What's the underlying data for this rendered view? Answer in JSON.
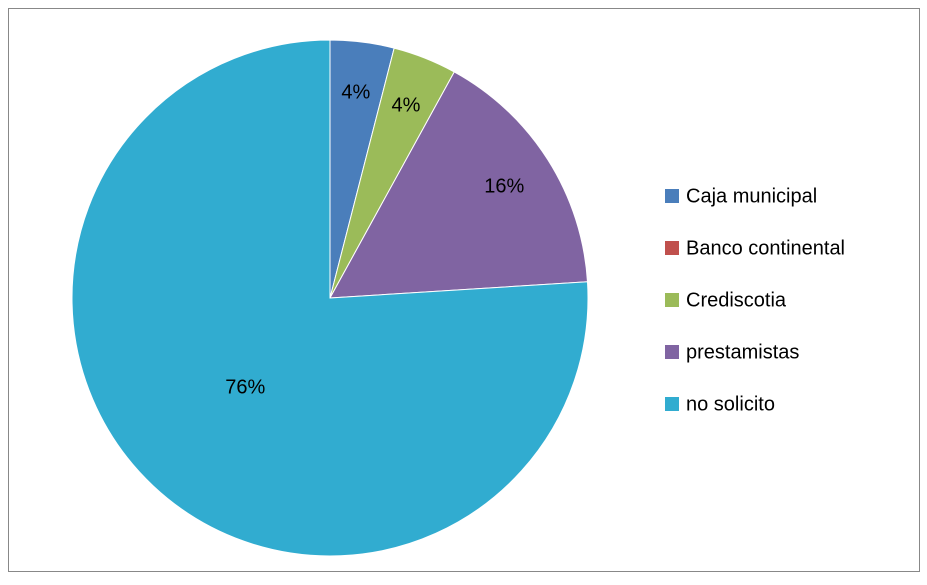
{
  "chart_data": {
    "type": "pie",
    "categories": [
      "Caja municipal",
      "Banco continental",
      "Crediscotia",
      "prestamistas",
      "no solicito"
    ],
    "values": [
      4,
      0,
      4,
      16,
      76
    ],
    "value_labels": [
      "4%",
      null,
      "4%",
      "16%",
      "76%"
    ],
    "colors": [
      "#4a7ebb",
      "#c0504d",
      "#9bbb59",
      "#8064a2",
      "#31acd0"
    ],
    "legend": "right"
  }
}
